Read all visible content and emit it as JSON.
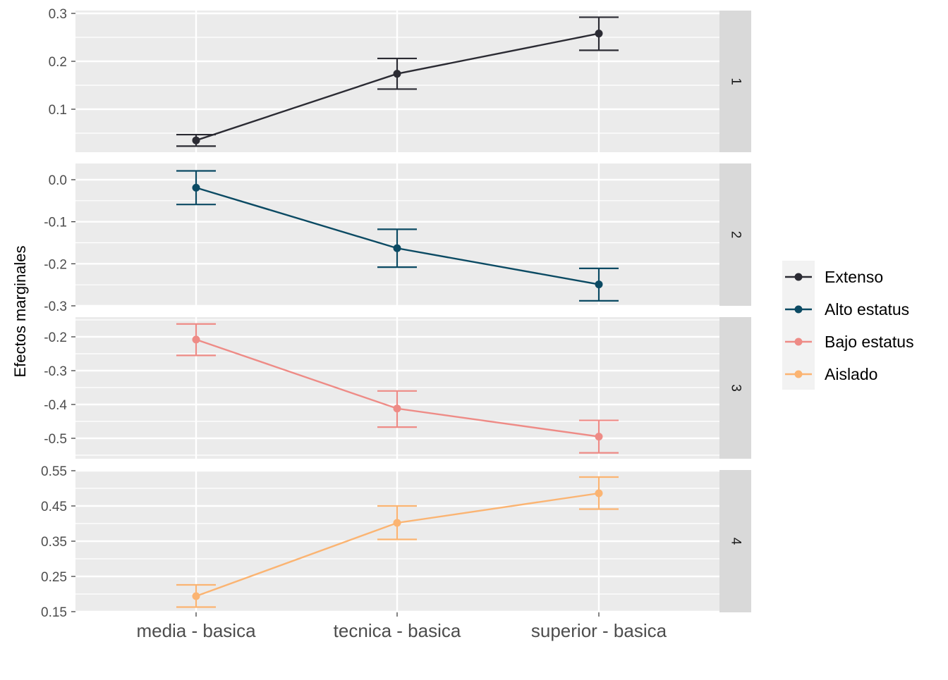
{
  "chart_data": {
    "type": "line",
    "ylabel": "Efectos marginales",
    "categories": [
      "media - basica",
      "tecnica - basica",
      "superior - basica"
    ],
    "legend": {
      "position": "right",
      "entries": [
        "Extenso",
        "Alto estatus",
        "Bajo estatus",
        "Aislado"
      ]
    },
    "panels": [
      {
        "strip": "1",
        "series_name": "Extenso",
        "color": "#2b2b33",
        "ylim": [
          0.0,
          0.3
        ],
        "ticks": [
          0.1,
          0.2,
          0.3
        ],
        "tick_labels": [
          "0.1",
          "0.2",
          "0.3"
        ],
        "values": [
          0.035,
          0.174,
          0.258
        ],
        "lower": [
          0.023,
          0.142,
          0.223
        ],
        "upper": [
          0.047,
          0.206,
          0.292
        ]
      },
      {
        "strip": "2",
        "series_name": "Alto estatus",
        "color": "#0b4a63",
        "ylim": [
          -0.3,
          0.0
        ],
        "ticks": [
          0.0,
          -0.1,
          -0.2,
          -0.3
        ],
        "tick_labels": [
          "0.0",
          "-0.1",
          "-0.2",
          "-0.3"
        ],
        "values": [
          -0.019,
          -0.163,
          -0.249
        ],
        "lower": [
          -0.059,
          -0.208,
          -0.288
        ],
        "upper": [
          0.021,
          -0.118,
          -0.211
        ]
      },
      {
        "strip": "3",
        "series_name": "Bajo estatus",
        "color": "#ee8b86",
        "ylim": [
          -0.5,
          -0.2
        ],
        "ticks": [
          -0.2,
          -0.3,
          -0.4,
          -0.5
        ],
        "tick_labels": [
          "-0.2",
          "-0.3",
          "-0.4",
          "-0.5"
        ],
        "values": [
          -0.208,
          -0.412,
          -0.495
        ],
        "lower": [
          -0.255,
          -0.467,
          -0.543
        ],
        "upper": [
          -0.162,
          -0.36,
          -0.447
        ]
      },
      {
        "strip": "4",
        "series_name": "Aislado",
        "color": "#fbb472",
        "ylim": [
          0.15,
          0.55
        ],
        "ticks": [
          0.15,
          0.25,
          0.35,
          0.45,
          0.55
        ],
        "tick_labels": [
          "0.15",
          "0.25",
          "0.35",
          "0.45",
          "0.55"
        ],
        "values": [
          0.194,
          0.402,
          0.486
        ],
        "lower": [
          0.163,
          0.355,
          0.441
        ],
        "upper": [
          0.226,
          0.45,
          0.532
        ]
      }
    ]
  }
}
